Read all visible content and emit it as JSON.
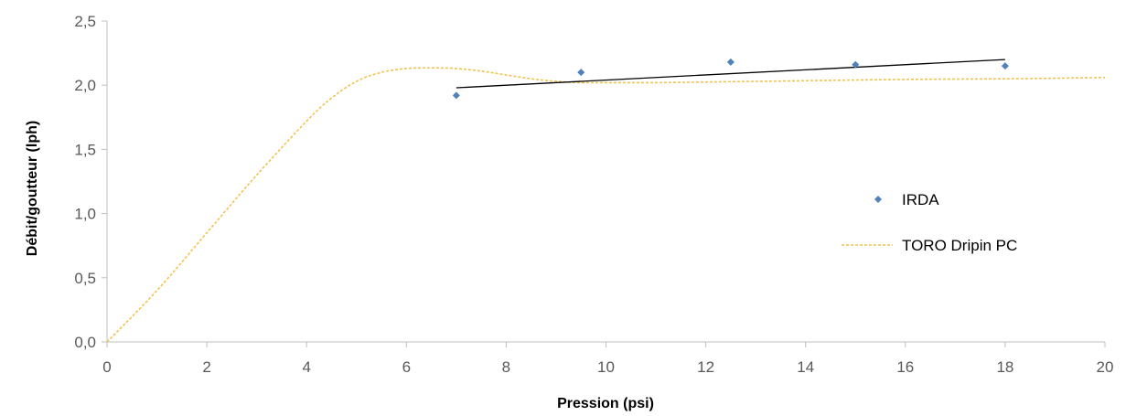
{
  "chart_data": {
    "type": "scatter",
    "title": "",
    "xlabel": "Pression (psi)",
    "ylabel": "Débit/goutteur (lph)",
    "xlim": [
      0,
      20
    ],
    "ylim": [
      0,
      2.5
    ],
    "x_ticks": [
      0,
      2,
      4,
      6,
      8,
      10,
      12,
      14,
      16,
      18,
      20
    ],
    "x_tick_labels": [
      "0",
      "2",
      "4",
      "6",
      "8",
      "10",
      "12",
      "14",
      "16",
      "18",
      "20"
    ],
    "y_ticks": [
      0,
      0.5,
      1.0,
      1.5,
      2.0,
      2.5
    ],
    "y_tick_labels": [
      "0,0",
      "0,5",
      "1,0",
      "1,5",
      "2,0",
      "2,5"
    ],
    "grid": false,
    "legend_position": "right",
    "series": [
      {
        "name": "IRDA",
        "kind": "scatter",
        "color": "#4f81bd",
        "marker": "diamond",
        "x": [
          7,
          9.5,
          12.5,
          15,
          18
        ],
        "y": [
          1.92,
          2.1,
          2.18,
          2.16,
          2.15
        ]
      },
      {
        "name": "",
        "kind": "trendline",
        "color": "#000000",
        "x": [
          7,
          18
        ],
        "y": [
          1.98,
          2.2
        ]
      },
      {
        "name": "TORO Dripin PC",
        "kind": "line",
        "style": "dashed",
        "color": "#f2c24f",
        "x": [
          0,
          1,
          2,
          3,
          4,
          4.5,
          5,
          5.5,
          6,
          6.5,
          7,
          7.5,
          8,
          8.5,
          9,
          9.5,
          10,
          11,
          12,
          14,
          16,
          18,
          20
        ],
        "y": [
          0,
          0.4,
          0.85,
          1.3,
          1.72,
          1.9,
          2.03,
          2.1,
          2.13,
          2.135,
          2.13,
          2.11,
          2.08,
          2.05,
          2.03,
          2.02,
          2.02,
          2.02,
          2.025,
          2.035,
          2.045,
          2.05,
          2.06
        ]
      }
    ]
  }
}
